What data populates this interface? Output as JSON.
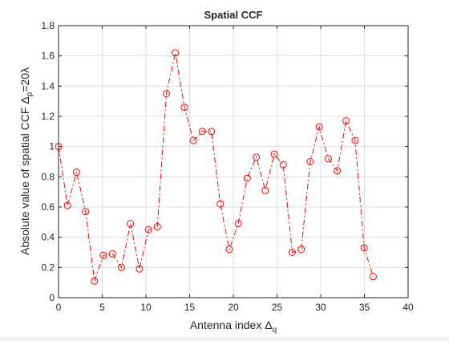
{
  "chart_data": {
    "type": "line",
    "title": "Spatial CCF",
    "xlabel": "Antenna index Δ",
    "xlabel_sub": "q",
    "ylabel": "Absolute value of spatial CCF Δ",
    "ylabel_sub": "p",
    "ylabel_suffix": "=20λ",
    "xlim": [
      0,
      40
    ],
    "ylim": [
      0,
      1.8
    ],
    "xticks": [
      0,
      5,
      10,
      15,
      20,
      25,
      30,
      35,
      40
    ],
    "yticks": [
      0,
      0.2,
      0.4,
      0.6,
      0.8,
      1.0,
      1.2,
      1.4,
      1.6,
      1.8
    ],
    "ytick_labels": [
      "0",
      "0.2",
      "0.4",
      "0.6",
      "0.8",
      "1",
      "1.2",
      "1.4",
      "1.6",
      "1.8"
    ],
    "grid": true,
    "series": [
      {
        "line_style": "dash-dot",
        "marker": "circle",
        "color": "#ff0000",
        "x": [
          0,
          1.03,
          2.06,
          3.09,
          4.11,
          5.14,
          6.17,
          7.2,
          8.23,
          9.26,
          10.29,
          11.31,
          12.34,
          13.37,
          14.4,
          15.43,
          16.46,
          17.49,
          18.51,
          19.54,
          20.57,
          21.6,
          22.63,
          23.66,
          24.69,
          25.71,
          26.74,
          27.77,
          28.8,
          29.83,
          30.86,
          31.89,
          32.91,
          33.94,
          34.97,
          36.0
        ],
        "y": [
          1.0,
          0.61,
          0.83,
          0.57,
          0.11,
          0.28,
          0.29,
          0.2,
          0.49,
          0.19,
          0.45,
          0.47,
          1.35,
          1.62,
          1.26,
          1.04,
          1.1,
          1.1,
          0.62,
          0.32,
          0.49,
          0.79,
          0.93,
          0.71,
          0.95,
          0.88,
          0.3,
          0.32,
          0.9,
          1.13,
          0.92,
          0.84,
          1.17,
          1.04,
          0.33,
          0.14
        ]
      }
    ]
  }
}
